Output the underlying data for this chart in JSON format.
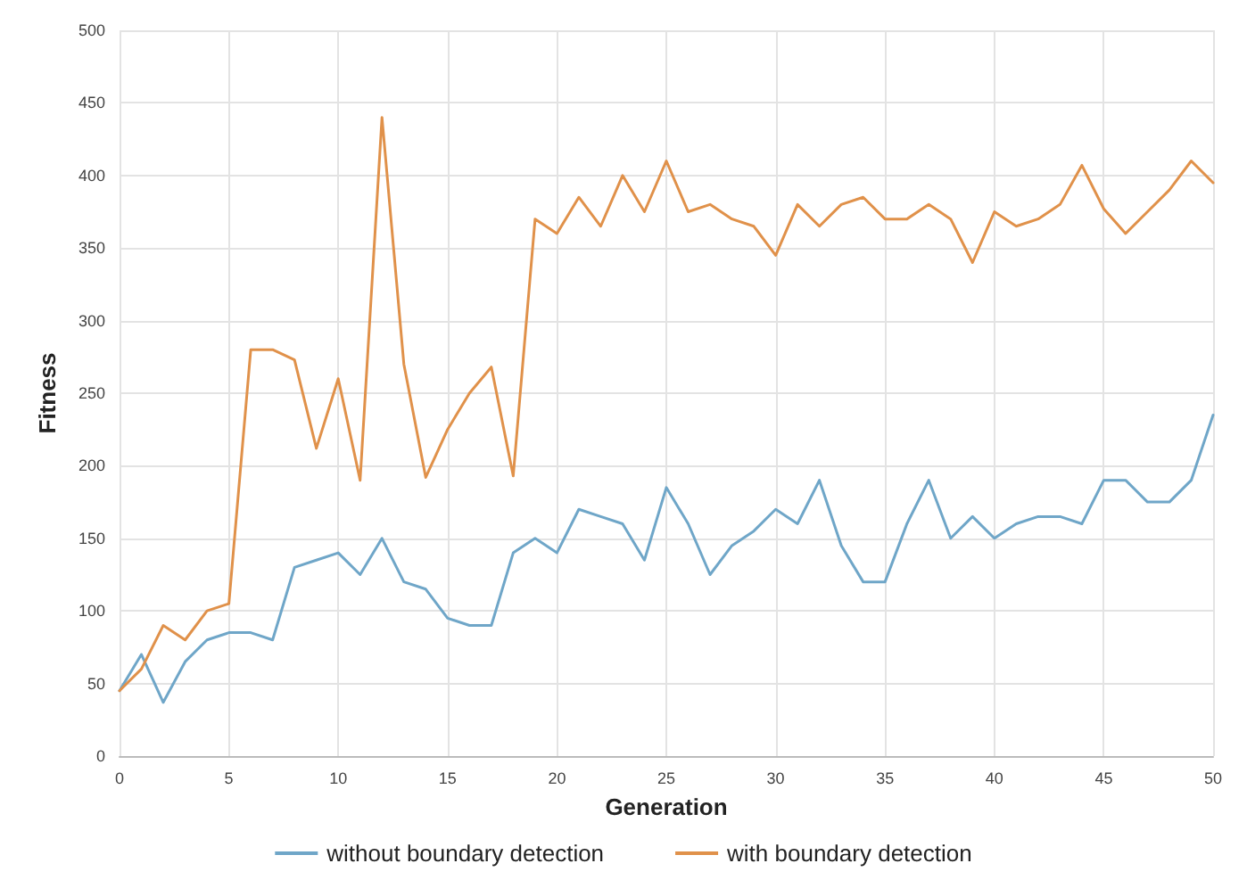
{
  "chart_data": {
    "type": "line",
    "xlabel": "Generation",
    "ylabel": "Fitness",
    "x": [
      0,
      1,
      2,
      3,
      4,
      5,
      6,
      7,
      8,
      9,
      10,
      11,
      12,
      13,
      14,
      15,
      16,
      17,
      18,
      19,
      20,
      21,
      22,
      23,
      24,
      25,
      26,
      27,
      28,
      29,
      30,
      31,
      32,
      33,
      34,
      35,
      36,
      37,
      38,
      39,
      40,
      41,
      42,
      43,
      44,
      45,
      46,
      47,
      48,
      49,
      50
    ],
    "series": [
      {
        "name": "without boundary detection",
        "color": "#6fa6c8",
        "values": [
          45,
          70,
          37,
          65,
          80,
          85,
          85,
          80,
          130,
          135,
          140,
          125,
          150,
          120,
          115,
          95,
          90,
          90,
          140,
          150,
          140,
          170,
          165,
          160,
          135,
          185,
          160,
          125,
          145,
          155,
          170,
          160,
          190,
          145,
          120,
          120,
          160,
          190,
          150,
          165,
          150,
          160,
          165,
          165,
          160,
          190,
          190,
          175,
          175,
          190,
          235
        ]
      },
      {
        "name": "with boundary detection",
        "color": "#e0914a",
        "values": [
          45,
          60,
          90,
          80,
          100,
          105,
          280,
          280,
          273,
          212,
          260,
          190,
          440,
          270,
          192,
          225,
          250,
          268,
          193,
          370,
          360,
          385,
          365,
          400,
          375,
          410,
          375,
          380,
          370,
          365,
          345,
          380,
          365,
          380,
          385,
          370,
          370,
          380,
          370,
          340,
          375,
          365,
          370,
          380,
          407,
          377,
          360,
          375,
          390,
          410,
          395
        ]
      }
    ],
    "xlim": [
      0,
      50
    ],
    "xticks": [
      0,
      5,
      10,
      15,
      20,
      25,
      30,
      35,
      40,
      45,
      50
    ],
    "ylim": [
      0,
      500
    ],
    "yticks": [
      0,
      50,
      100,
      150,
      200,
      250,
      300,
      350,
      400,
      450,
      500
    ],
    "grid": true,
    "legend": "bottom",
    "marker": "none",
    "line_style": "solid"
  }
}
